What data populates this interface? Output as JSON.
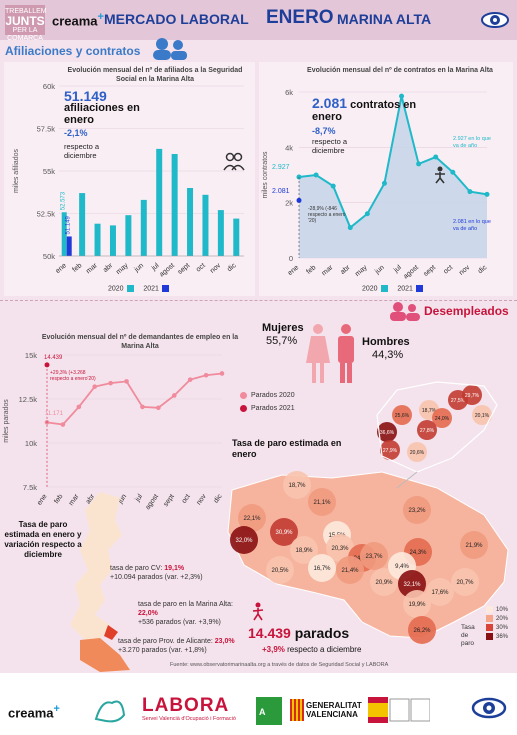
{
  "header": {
    "logo_treballem": "TREBALLEM",
    "logo_junts": "JUNTS",
    "logo_sub": "PER LA COMARCA",
    "logo_creama": "creama",
    "title_left": "MERCADO LABORAL",
    "title_mid": "ENERO",
    "title_right": "MARINA ALTA"
  },
  "afiliaciones": {
    "section_title": "Afiliaciones y contratos",
    "panel_title": "Evolución mensual del nº de afiliados a la Seguridad Social en la Marina Alta",
    "big_number": "51.149",
    "big_label": "afiliaciones en enero",
    "change": "-2,1%",
    "change_label": "respecto a diciembre",
    "bar_label_2020": "52.573",
    "bar_label_2021": "51.149"
  },
  "contratos": {
    "panel_title": "Evolución mensual del nº de contratos en la Marina Alta",
    "big_number": "2.081",
    "big_label": "contratos en enero",
    "change": "-8,7%",
    "change_label": "respecto a diciembre",
    "lbl_2927": "2.927",
    "lbl_2081": "2.081",
    "note_2927": "2.927 en lo que va de año",
    "note_2081": "2.081 en lo que va de año",
    "note_var": "-28,9% (-846 respecto a enero '20)"
  },
  "desempleados": {
    "section_title": "Desempleados",
    "mujeres_label": "Mujeres",
    "mujeres_pct": "55,7%",
    "hombres_label": "Hombres",
    "hombres_pct": "44,3%",
    "panel_title": "Evolución mensual del nº de demandantes de empleo en la Marina Alta",
    "lbl_14439": "14.439",
    "lbl_var": "+29,3% (+3.268 respecto a enero'20)",
    "lbl_11171": "11.171",
    "legend_2020": "Parados 2020",
    "legend_2021": "Parados 2021",
    "map_title": "Tasa de paro estimada en enero",
    "cv_title": "Tasa de paro estimada en enero y variación respecto a diciembre",
    "cv_rate_label": "tasa de paro CV:",
    "cv_rate": "19,1%",
    "cv_parados": "+10.094 parados (var. +2,3%)",
    "ma_rate_label": "tasa de paro en la Marina Alta:",
    "ma_rate": "22,0%",
    "ma_parados": "+536 parados (var. +3,9%)",
    "al_rate_label": "tasa de paro Prov. de Alicante:",
    "al_rate": "23,0%",
    "al_parados": "+3.270 parados (var. +1,8%)",
    "total_parados": "14.439",
    "total_label": "parados",
    "total_change": "+3,9%",
    "total_change_label": "respecto a diciembre",
    "tasa_legend_label": "Tasa de paro",
    "tasa_legend": [
      "10%",
      "20%",
      "30%",
      "36%"
    ],
    "map_labels": [
      "18,7%",
      "21,1%",
      "23,2%",
      "22,1%",
      "30,9%",
      "15,5%",
      "21,9%",
      "32,0%",
      "18,9%",
      "20,3%",
      "24,5%",
      "23,7%",
      "24,3%",
      "20,5%",
      "16,7%",
      "21,4%",
      "20,9%",
      "9,4%",
      "32,1%",
      "20,7%",
      "17,6%",
      "19,9%",
      "26,2%",
      "25,6%",
      "18,7%",
      "24,0%",
      "27,8%",
      "36,6%",
      "27,9%",
      "20,6%",
      "27,5%",
      "20,1%",
      "29,7%"
    ]
  },
  "footer": {
    "source": "Fuente: www.observatorimarinaalta.org a través de datos de Seguridad Social y LABORA",
    "logo_creama": "creama",
    "logo_labora": "LABORA",
    "logo_labora_sub": "Servei Valencià d'Ocupació i Formació",
    "logo_gv1": "GENERALITAT",
    "logo_gv2": "VALENCIANA"
  },
  "colors": {
    "teal": "#1fb9c9",
    "blue": "#1f3ad8",
    "pink_line": "#f08a9c",
    "red_line": "#c8143c",
    "title_blue": "#1d3f9a"
  },
  "chart_data": [
    {
      "type": "bar",
      "title": "Evolución mensual del nº de afiliados a la Seguridad Social en la Marina Alta",
      "ylabel": "miles afiliados",
      "categories": [
        "ene",
        "feb",
        "mar",
        "abr",
        "may",
        "jun",
        "jul",
        "agost",
        "sept",
        "oct",
        "nov",
        "dic"
      ],
      "series": [
        {
          "name": "2020",
          "values": [
            52573,
            53700,
            51900,
            51800,
            52400,
            53300,
            56300,
            56000,
            54000,
            53600,
            52700,
            52200
          ]
        },
        {
          "name": "2021",
          "values": [
            51149,
            null,
            null,
            null,
            null,
            null,
            null,
            null,
            null,
            null,
            null,
            null
          ]
        }
      ],
      "ylim": [
        50000,
        60000
      ],
      "ticks": [
        "50k",
        "52.5k",
        "55k",
        "57.5k",
        "60k"
      ]
    },
    {
      "type": "area",
      "title": "Evolución mensual del nº de contratos en la Marina Alta",
      "ylabel": "miles contratos",
      "categories": [
        "ene",
        "feb",
        "mar",
        "abr",
        "may",
        "jun",
        "jul",
        "agost",
        "sept",
        "oct",
        "nov",
        "dic"
      ],
      "series": [
        {
          "name": "2020",
          "values": [
            2927,
            3000,
            2600,
            1100,
            1600,
            2700,
            5850,
            3400,
            3650,
            3100,
            2400,
            2300
          ]
        },
        {
          "name": "2021",
          "values": [
            2081,
            null,
            null,
            null,
            null,
            null,
            null,
            null,
            null,
            null,
            null,
            null
          ]
        }
      ],
      "ylim": [
        0,
        6000
      ],
      "ticks": [
        "0",
        "2k",
        "4k",
        "6k"
      ]
    },
    {
      "type": "line",
      "title": "Evolución mensual del nº de demandantes de empleo en la Marina Alta",
      "ylabel": "miles parados",
      "categories": [
        "ene",
        "feb",
        "mar",
        "abr",
        "mayo",
        "jun",
        "jul",
        "agost",
        "sept",
        "oct",
        "nov",
        "dic"
      ],
      "series": [
        {
          "name": "Parados 2020",
          "values": [
            11171,
            11050,
            12050,
            13200,
            13400,
            13500,
            12050,
            12000,
            12700,
            13600,
            13850,
            13950
          ]
        },
        {
          "name": "Parados 2021",
          "values": [
            14439,
            null,
            null,
            null,
            null,
            null,
            null,
            null,
            null,
            null,
            null,
            null
          ]
        }
      ],
      "ylim": [
        7500,
        15000
      ],
      "ticks": [
        "7.5k",
        "10k",
        "12.5k",
        "15k"
      ]
    }
  ]
}
